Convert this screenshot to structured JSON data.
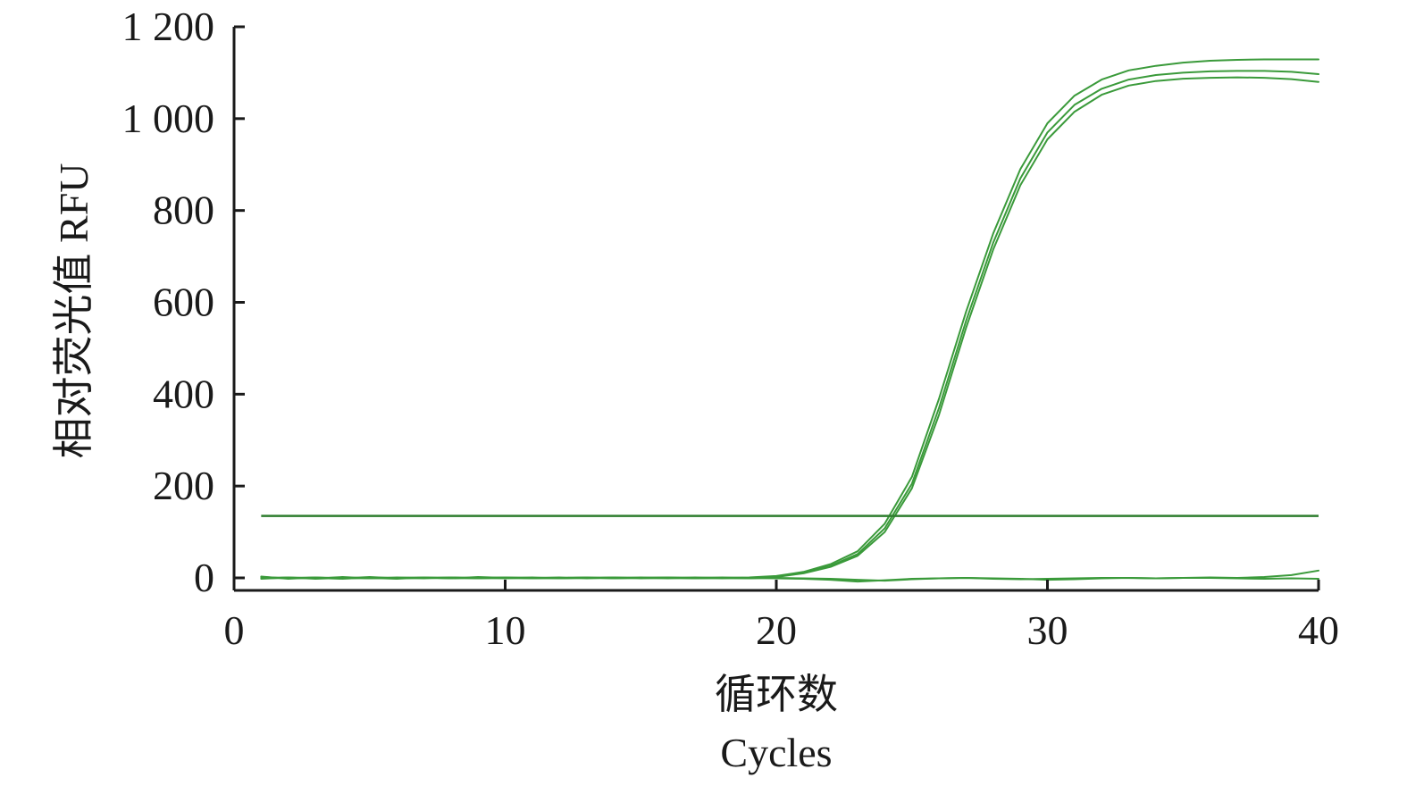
{
  "chart_data": {
    "type": "line",
    "title": "",
    "ylabel": "相对荧光值 RFU",
    "xlabel": "循环数",
    "xlabel_en": "Cycles",
    "xlim": [
      0,
      40
    ],
    "ylim": [
      0,
      1200
    ],
    "x_ticks": [
      {
        "value": 0,
        "label": "0"
      },
      {
        "value": 10,
        "label": "10"
      },
      {
        "value": 20,
        "label": "20"
      },
      {
        "value": 30,
        "label": "30"
      },
      {
        "value": 40,
        "label": "40"
      }
    ],
    "y_ticks": [
      {
        "value": 0,
        "label": "0"
      },
      {
        "value": 200,
        "label": "200"
      },
      {
        "value": 400,
        "label": "400"
      },
      {
        "value": 600,
        "label": "600"
      },
      {
        "value": 800,
        "label": "800"
      },
      {
        "value": 1000,
        "label": "1 000"
      },
      {
        "value": 1200,
        "label": "1 200"
      }
    ],
    "grid": false,
    "legend": "none",
    "colors": {
      "curve": "#3a9a3a",
      "threshold": "#2e7d2e",
      "axis": "#1a1a1a"
    },
    "threshold": 135,
    "x": [
      1,
      2,
      3,
      4,
      5,
      6,
      7,
      8,
      9,
      10,
      11,
      12,
      13,
      14,
      15,
      16,
      17,
      18,
      19,
      20,
      21,
      22,
      23,
      24,
      25,
      26,
      27,
      28,
      29,
      30,
      31,
      32,
      33,
      34,
      35,
      36,
      37,
      38,
      39,
      40
    ],
    "series": [
      {
        "values": [
          2,
          -1,
          0,
          -2,
          1,
          0,
          -1,
          1,
          0,
          -1,
          0,
          1,
          -1,
          0,
          1,
          0,
          -1,
          0,
          1,
          4,
          13,
          30,
          58,
          118,
          220,
          390,
          580,
          750,
          890,
          990,
          1050,
          1085,
          1105,
          1115,
          1122,
          1126,
          1128,
          1129,
          1129,
          1129
        ]
      },
      {
        "values": [
          0,
          1,
          -2,
          0,
          -1,
          1,
          0,
          -1,
          2,
          0,
          -1,
          0,
          1,
          -1,
          0,
          1,
          0,
          -1,
          0,
          3,
          11,
          26,
          52,
          108,
          205,
          370,
          560,
          730,
          870,
          970,
          1030,
          1065,
          1085,
          1095,
          1100,
          1103,
          1104,
          1104,
          1102,
          1097
        ]
      },
      {
        "values": [
          -1,
          0,
          1,
          -1,
          0,
          -2,
          1,
          0,
          -1,
          1,
          0,
          -1,
          0,
          1,
          -1,
          0,
          1,
          0,
          -1,
          2,
          10,
          24,
          48,
          100,
          195,
          355,
          545,
          715,
          855,
          955,
          1015,
          1052,
          1072,
          1082,
          1087,
          1089,
          1090,
          1089,
          1086,
          1080
        ]
      },
      {
        "values": [
          3,
          -2,
          1,
          -1,
          2,
          -1,
          0,
          1,
          -1,
          0,
          1,
          -1,
          0,
          1,
          0,
          -1,
          0,
          1,
          0,
          -1,
          -2,
          -4,
          -8,
          -5,
          -2,
          -1,
          0,
          -1,
          -2,
          -4,
          -3,
          -1,
          0,
          -1,
          0,
          1,
          0,
          2,
          6,
          16
        ]
      },
      {
        "values": [
          -2,
          1,
          -1,
          2,
          -1,
          0,
          1,
          -1,
          0,
          1,
          -1,
          0,
          1,
          -1,
          0,
          1,
          -1,
          0,
          -1,
          0,
          -1,
          -2,
          -4,
          -6,
          -3,
          -1,
          0,
          -2,
          -3,
          -2,
          -1,
          0,
          0,
          -1,
          0,
          0,
          -1,
          -2,
          -1,
          -2
        ]
      }
    ]
  }
}
